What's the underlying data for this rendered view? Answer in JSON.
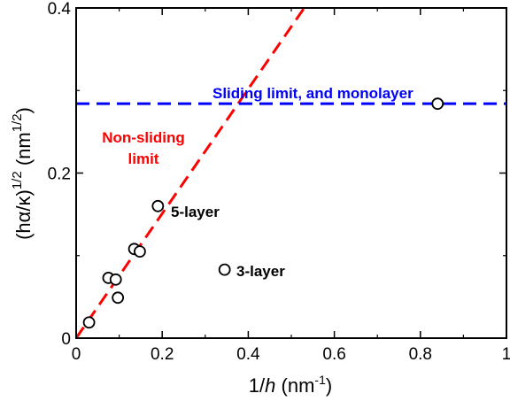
{
  "chart_data": {
    "type": "scatter",
    "title": "",
    "xlabel_parts": [
      "1/",
      "h",
      " (nm",
      "-1",
      ")"
    ],
    "ylabel_parts": [
      "(h",
      "α",
      "/",
      "κ",
      ")",
      "1/2",
      " (nm",
      "1/2",
      ")"
    ],
    "xlim": [
      0,
      1
    ],
    "ylim": [
      0,
      0.4
    ],
    "xticks": [
      0,
      0.2,
      0.4,
      0.6,
      0.8,
      1
    ],
    "xtick_labels": [
      "0",
      "0.2",
      "0.4",
      "0.6",
      "0.8",
      "1"
    ],
    "yticks": [
      0,
      0.2,
      0.4
    ],
    "ytick_labels": [
      "0",
      "0.2",
      "0.4"
    ],
    "grid": false,
    "series": [
      {
        "marker": "open-circle",
        "color": "#000000",
        "points": [
          {
            "x": 0.03,
            "y": 0.019
          },
          {
            "x": 0.075,
            "y": 0.073
          },
          {
            "x": 0.092,
            "y": 0.071
          },
          {
            "x": 0.097,
            "y": 0.049
          },
          {
            "x": 0.135,
            "y": 0.108
          },
          {
            "x": 0.148,
            "y": 0.105
          },
          {
            "x": 0.19,
            "y": 0.16
          },
          {
            "x": 0.345,
            "y": 0.083
          },
          {
            "x": 0.84,
            "y": 0.284
          }
        ]
      }
    ],
    "lines": [
      {
        "style": "dashed",
        "color": "#ff0000",
        "x": [
          0,
          0.53
        ],
        "y": [
          0,
          0.4
        ]
      },
      {
        "style": "dashed",
        "color": "#0000ff",
        "x": [
          0,
          1
        ],
        "y": [
          0.284,
          0.284
        ]
      }
    ],
    "annotations": [
      {
        "text": "Sliding limit, and monolayer",
        "color": "#0000ff"
      },
      {
        "text": "Non-sliding",
        "color": "#ff0000"
      },
      {
        "text": "limit",
        "color": "#ff0000"
      },
      {
        "text": "5-layer",
        "color": "#000000"
      },
      {
        "text": "3-layer",
        "color": "#000000"
      }
    ]
  }
}
